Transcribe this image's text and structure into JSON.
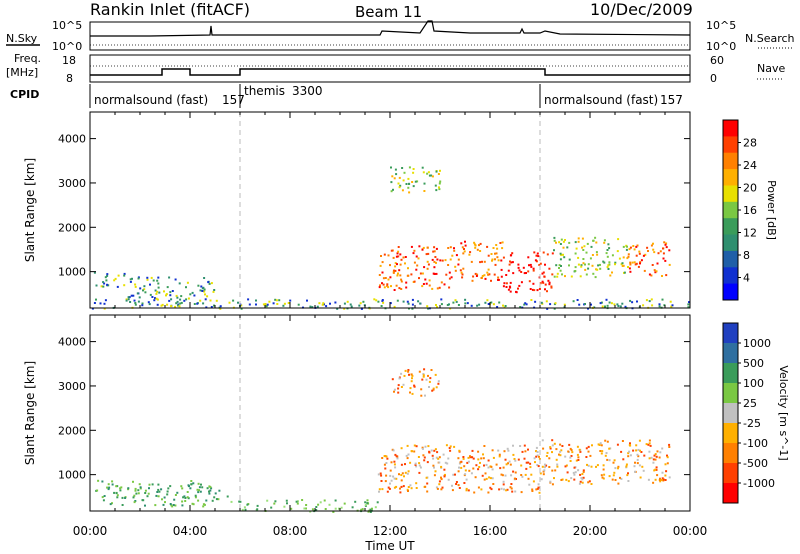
{
  "header": {
    "title": "Rankin Inlet (fitACF)",
    "beam": "Beam 11",
    "date": "10/Dec/2009"
  },
  "top_panel": {
    "nsky_label": "N.Sky",
    "nsearch_label": "N.Search",
    "freq_label": "Freq.",
    "freq_unit": "[MHz]",
    "nave_label": "Nave",
    "left_top_tick": "10^5",
    "left_bottom_tick": "10^0",
    "right_top_tick": "10^5",
    "right_bottom_tick": "10^0",
    "freq_ticks": [
      "18",
      "8"
    ],
    "nave_ticks": [
      "60",
      "0"
    ]
  },
  "cpid": {
    "label": "CPID",
    "segments": [
      {
        "start_hour": 0,
        "end_hour": 6,
        "name": "normalsound (fast)",
        "id": "157"
      },
      {
        "start_hour": 6,
        "end_hour": 18,
        "name": "themis",
        "id": "3300"
      },
      {
        "start_hour": 18,
        "end_hour": 24,
        "name": "normalsound (fast)",
        "id": "157"
      }
    ]
  },
  "chart_data": [
    {
      "type": "heatmap",
      "ylabel": "Slant Range [km]",
      "xlabel": "",
      "x_ticks": [
        "00:00",
        "04:00",
        "08:00",
        "12:00",
        "16:00",
        "20:00",
        "00:00"
      ],
      "xlim_hours": [
        0,
        24
      ],
      "y_ticks": [
        1000,
        2000,
        3000,
        4000
      ],
      "ylim": [
        180,
        4600
      ],
      "colorbar": {
        "label": "Power [dB]",
        "ticks": [
          "28",
          "24",
          "20",
          "16",
          "12",
          "8",
          "4"
        ],
        "colors": [
          "#ff0000",
          "#ff4000",
          "#ff8000",
          "#ffb000",
          "#e8e000",
          "#7ac843",
          "#3a9c5a",
          "#2f8f6f",
          "#1f5fa8",
          "#1030d0",
          "#0000ff"
        ]
      },
      "regions": [
        {
          "from_hour": 0.1,
          "to_hour": 1.5,
          "from_km": 650,
          "to_km": 1000,
          "level": "low"
        },
        {
          "from_hour": 1.5,
          "to_hour": 5.0,
          "from_km": 250,
          "to_km": 900,
          "level": "low"
        },
        {
          "from_hour": 11.5,
          "to_hour": 14.5,
          "from_km": 600,
          "to_km": 1600,
          "level": "high"
        },
        {
          "from_hour": 14.5,
          "to_hour": 16.5,
          "from_km": 800,
          "to_km": 1700,
          "level": "high"
        },
        {
          "from_hour": 16.5,
          "to_hour": 18.5,
          "from_km": 550,
          "to_km": 1500,
          "level": "peak"
        },
        {
          "from_hour": 18.5,
          "to_hour": 21.5,
          "from_km": 900,
          "to_km": 1800,
          "level": "medium"
        },
        {
          "from_hour": 21.5,
          "to_hour": 23.2,
          "from_km": 900,
          "to_km": 1700,
          "level": "high"
        },
        {
          "from_hour": 12.0,
          "to_hour": 14.0,
          "from_km": 2800,
          "to_km": 3400,
          "level": "medium"
        },
        {
          "from_hour": 0.0,
          "to_hour": 24.0,
          "from_km": 180,
          "to_km": 400,
          "level": "low"
        }
      ]
    },
    {
      "type": "heatmap",
      "ylabel": "Slant Range [km]",
      "xlabel": "Time UT",
      "x_ticks": [
        "00:00",
        "04:00",
        "08:00",
        "12:00",
        "16:00",
        "20:00",
        "00:00"
      ],
      "xlim_hours": [
        0,
        24
      ],
      "y_ticks": [
        1000,
        2000,
        3000,
        4000
      ],
      "ylim": [
        180,
        4600
      ],
      "colorbar": {
        "label": "Velocity [m s^-1]",
        "ticks": [
          "1000",
          "500",
          "100",
          "25",
          "-25",
          "-100",
          "-500",
          "-1000"
        ],
        "colors": [
          "#2040c0",
          "#2f6fa0",
          "#3a9c5a",
          "#7ac843",
          "#c0c0c0",
          "#ffb000",
          "#ff8000",
          "#ff4000",
          "#ff0000"
        ]
      },
      "regions": [
        {
          "from_hour": 0.2,
          "to_hour": 5.5,
          "from_km": 300,
          "to_km": 900,
          "level": "green"
        },
        {
          "from_hour": 5.5,
          "to_hour": 11.5,
          "from_km": 180,
          "to_km": 450,
          "level": "lightgreen"
        },
        {
          "from_hour": 11.5,
          "to_hour": 18.0,
          "from_km": 600,
          "to_km": 1700,
          "level": "orange"
        },
        {
          "from_hour": 18.0,
          "to_hour": 23.2,
          "from_km": 800,
          "to_km": 1800,
          "level": "orange"
        },
        {
          "from_hour": 12.0,
          "to_hour": 14.0,
          "from_km": 2800,
          "to_km": 3400,
          "level": "orange"
        }
      ]
    }
  ]
}
